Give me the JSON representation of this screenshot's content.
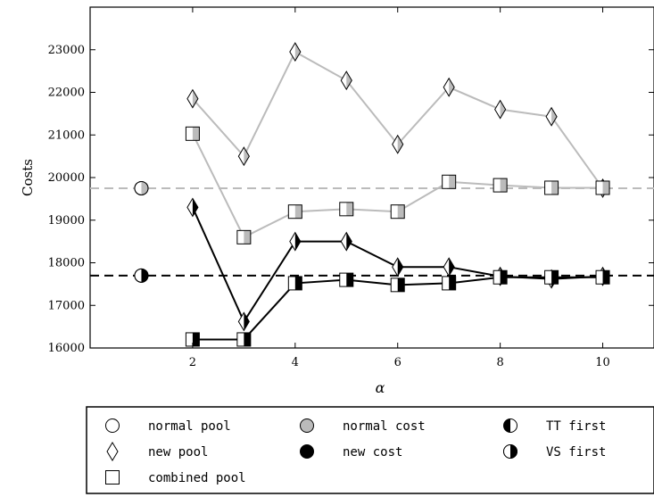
{
  "chart_data": {
    "type": "line",
    "ylabel": "Costs",
    "xlabel": "α",
    "xlim": [
      0,
      11
    ],
    "ylim": [
      16000,
      24000
    ],
    "xticks": [
      2,
      4,
      6,
      8,
      10
    ],
    "yticks": [
      16000,
      17000,
      18000,
      19000,
      20000,
      21000,
      22000,
      23000
    ],
    "grid": false,
    "reference_lines": [
      {
        "value": 19750,
        "color": "#bbbbbb",
        "style": "dashed"
      },
      {
        "value": 17700,
        "color": "#000000",
        "style": "dashed"
      }
    ],
    "reference_points": [
      {
        "x": 1,
        "y": 19750,
        "marker": "circle",
        "fill": "gray",
        "half": "right"
      },
      {
        "x": 1,
        "y": 17700,
        "marker": "circle",
        "fill": "black",
        "half": "right"
      }
    ],
    "series": [
      {
        "pool": "new",
        "cost": "normal",
        "line": "#bbbbbb",
        "marker": "diamond",
        "half": "right",
        "x": [
          2,
          3,
          4,
          5,
          6,
          7,
          8,
          9,
          10
        ],
        "y": [
          21850,
          20500,
          22950,
          22280,
          20780,
          22120,
          21600,
          21430,
          19750
        ]
      },
      {
        "pool": "combined",
        "cost": "normal",
        "line": "#bbbbbb",
        "marker": "square",
        "half": "right",
        "x": [
          2,
          3,
          4,
          5,
          6,
          7,
          8,
          9,
          10
        ],
        "y": [
          21030,
          18600,
          19200,
          19260,
          19200,
          19900,
          19820,
          19760,
          19760
        ]
      },
      {
        "pool": "new",
        "cost": "new",
        "line": "#000000",
        "marker": "diamond",
        "half": "right",
        "x": [
          2,
          3,
          4,
          5,
          6,
          7,
          8,
          9,
          10
        ],
        "y": [
          19300,
          16620,
          18500,
          18500,
          17900,
          17900,
          17680,
          17620,
          17680
        ]
      },
      {
        "pool": "combined",
        "cost": "new",
        "line": "#000000",
        "marker": "square",
        "half": "right",
        "x": [
          2,
          3,
          4,
          5,
          6,
          7,
          8,
          9,
          10
        ],
        "y": [
          16200,
          16200,
          17520,
          17600,
          17480,
          17520,
          17660,
          17660,
          17660
        ]
      }
    ]
  },
  "legend": {
    "items": [
      {
        "label": "normal pool",
        "icon": "open-circle-icon"
      },
      {
        "label": "normal cost",
        "icon": "gray-circle-icon"
      },
      {
        "label": "TT first",
        "icon": "half-circle-right-black-icon"
      },
      {
        "label": "new pool",
        "icon": "diamond-icon"
      },
      {
        "label": "new cost",
        "icon": "black-circle-icon"
      },
      {
        "label": "VS first",
        "icon": "half-circle-right-open-icon"
      },
      {
        "label": "combined pool",
        "icon": "square-icon"
      }
    ]
  }
}
